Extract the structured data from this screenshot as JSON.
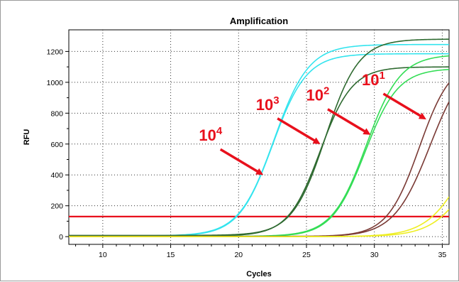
{
  "chart_data": {
    "type": "line",
    "title": "Amplification",
    "xlabel": "Cycles",
    "ylabel": "RFU",
    "xlim": [
      7.5,
      35.5
    ],
    "ylim": [
      -50,
      1340
    ],
    "xticks": [
      10,
      15,
      20,
      25,
      30,
      35
    ],
    "yticks": [
      0,
      200,
      400,
      600,
      800,
      1000,
      1200
    ],
    "grid": true,
    "threshold": {
      "y": 130,
      "color": "#e8101c"
    },
    "series": [
      {
        "color": "#33e4ee",
        "base": 5,
        "plateau": 1245,
        "midpoint": 22.6,
        "slope": 0.78
      },
      {
        "color": "#33e4ee",
        "base": 3,
        "plateau": 1185,
        "midpoint": 22.5,
        "slope": 0.8
      },
      {
        "color": "#2e6a30",
        "base": 8,
        "plateau": 1280,
        "midpoint": 26.4,
        "slope": 0.82
      },
      {
        "color": "#2e6a30",
        "base": 4,
        "plateau": 1100,
        "midpoint": 26.0,
        "slope": 0.85
      },
      {
        "color": "#33dd55",
        "base": 2,
        "plateau": 1180,
        "midpoint": 29.4,
        "slope": 0.8
      },
      {
        "color": "#33dd55",
        "base": 0,
        "plateau": 1090,
        "midpoint": 29.3,
        "slope": 0.82
      },
      {
        "color": "#7a3a35",
        "base": 2,
        "plateau": 1150,
        "midpoint": 33.3,
        "slope": 0.85
      },
      {
        "color": "#7a3a35",
        "base": 0,
        "plateau": 1180,
        "midpoint": 34.1,
        "slope": 0.75
      },
      {
        "color": "#eeee22",
        "base": 0,
        "plateau": 900,
        "midpoint": 36.8,
        "slope": 0.7
      },
      {
        "color": "#eeee22",
        "base": 0,
        "plateau": 800,
        "midpoint": 37.3,
        "slope": 0.7
      }
    ],
    "annotations": [
      {
        "base": "10",
        "exp": "4",
        "x": 21.8,
        "y": 400
      },
      {
        "base": "10",
        "exp": "3",
        "x": 26.0,
        "y": 600
      },
      {
        "base": "10",
        "exp": "2",
        "x": 29.7,
        "y": 660
      },
      {
        "base": "10",
        "exp": "1",
        "x": 33.8,
        "y": 760
      }
    ]
  }
}
